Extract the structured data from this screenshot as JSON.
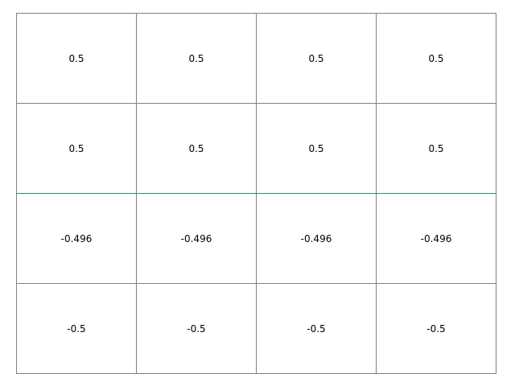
{
  "chart_data": {
    "type": "table",
    "rows": [
      [
        "0.5",
        "0.5",
        "0.5",
        "0.5"
      ],
      [
        "0.5",
        "0.5",
        "0.5",
        "0.5"
      ],
      [
        "-0.496",
        "-0.496",
        "-0.496",
        "-0.496"
      ],
      [
        "-0.5",
        "-0.5",
        "-0.5",
        "-0.5"
      ]
    ],
    "grid": true,
    "colors": {
      "grid_line": "#808080",
      "separator_line": "#2e8b74"
    }
  }
}
